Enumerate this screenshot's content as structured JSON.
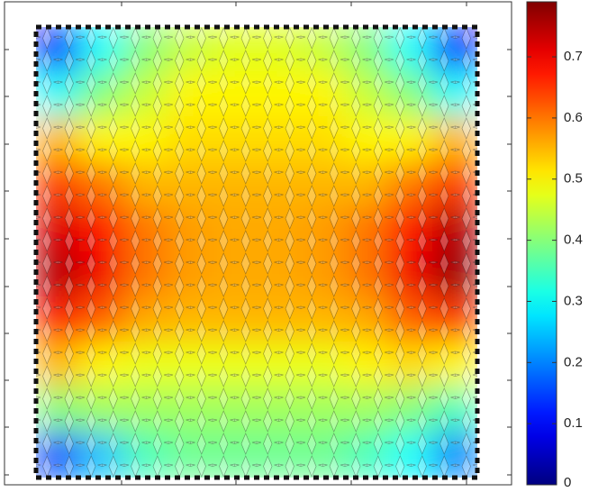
{
  "chart_data": {
    "type": "heatmap",
    "values": [
      [
        0.1,
        0.3,
        0.4,
        0.45,
        0.47,
        0.47,
        0.45,
        0.4,
        0.3,
        0.1
      ],
      [
        0.3,
        0.4,
        0.45,
        0.5,
        0.5,
        0.5,
        0.5,
        0.45,
        0.4,
        0.3
      ],
      [
        0.55,
        0.5,
        0.5,
        0.52,
        0.52,
        0.52,
        0.52,
        0.5,
        0.5,
        0.55
      ],
      [
        0.65,
        0.6,
        0.55,
        0.55,
        0.55,
        0.55,
        0.55,
        0.55,
        0.6,
        0.65
      ],
      [
        0.72,
        0.68,
        0.6,
        0.57,
        0.56,
        0.56,
        0.57,
        0.6,
        0.68,
        0.75
      ],
      [
        0.75,
        0.7,
        0.6,
        0.57,
        0.56,
        0.56,
        0.57,
        0.6,
        0.7,
        0.77
      ],
      [
        0.68,
        0.62,
        0.56,
        0.55,
        0.55,
        0.55,
        0.55,
        0.56,
        0.62,
        0.65
      ],
      [
        0.55,
        0.5,
        0.48,
        0.48,
        0.48,
        0.48,
        0.48,
        0.5,
        0.52,
        0.5
      ],
      [
        0.4,
        0.42,
        0.42,
        0.42,
        0.42,
        0.42,
        0.42,
        0.42,
        0.4,
        0.35
      ],
      [
        0.15,
        0.25,
        0.35,
        0.38,
        0.38,
        0.38,
        0.38,
        0.35,
        0.3,
        0.2
      ]
    ],
    "colormap": "jet",
    "clim": [
      0,
      0.79
    ],
    "cticks": [
      0,
      0.1,
      0.2,
      0.3,
      0.4,
      0.5,
      0.6,
      0.7
    ]
  }
}
